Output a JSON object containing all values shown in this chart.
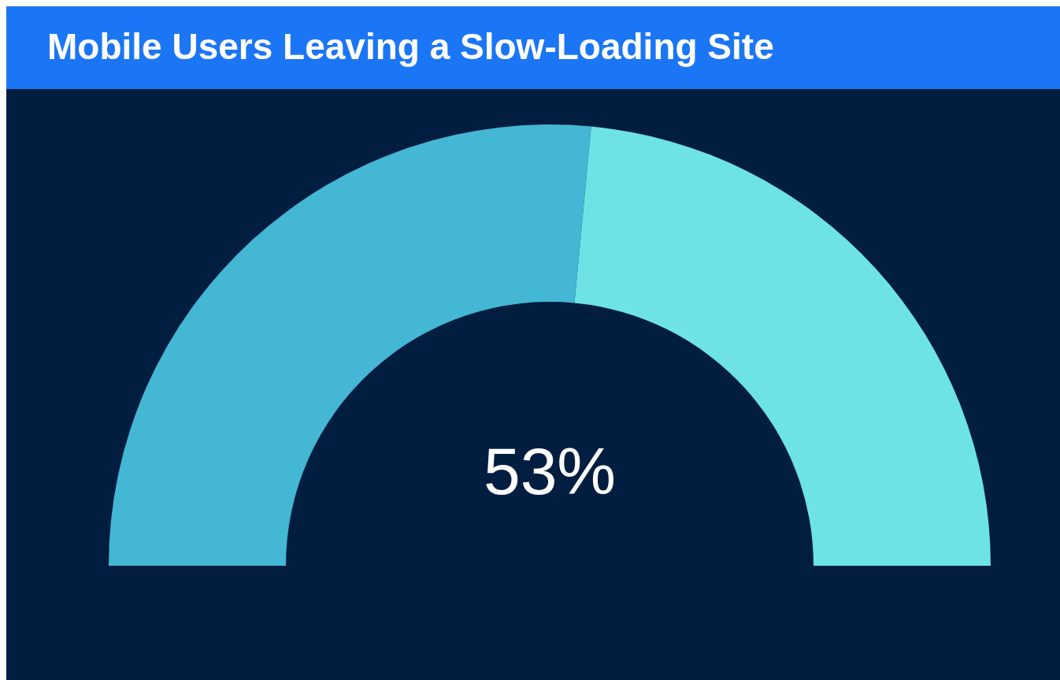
{
  "chart_data": {
    "type": "donut",
    "title": "Mobile Users Leaving a Slow-Loading Site",
    "categories": [
      null,
      null
    ],
    "values": [
      53,
      47
    ],
    "colors": [
      "#43b7d4",
      "#6de3e6"
    ],
    "value_labels": [
      "53%",
      null
    ]
  }
}
